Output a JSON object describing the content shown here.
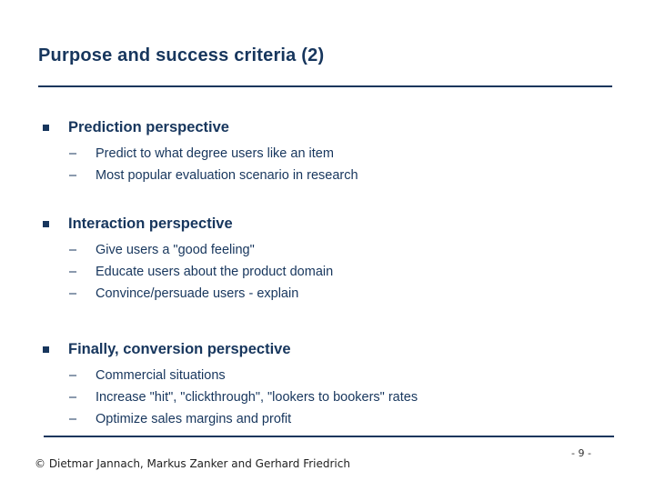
{
  "slide": {
    "title": "Purpose and success criteria (2)",
    "colors": {
      "accent": "#17365d",
      "footer_text": "#1f1f1f"
    },
    "bullet_glyphs": {
      "level2": "–"
    },
    "sections": [
      {
        "heading": "Prediction perspective",
        "items": [
          "Predict to what degree users like an item",
          "Most popular evaluation scenario in research"
        ]
      },
      {
        "heading": "Interaction perspective",
        "items": [
          "Give users a \"good feeling\"",
          "Educate users about the product domain",
          "Convince/persuade users - explain"
        ]
      },
      {
        "heading": "Finally, conversion perspective",
        "items": [
          "Commercial situations",
          "Increase \"hit\", \"clickthrough\", \"lookers to bookers\" rates",
          "Optimize sales margins and profit"
        ]
      }
    ],
    "footer": {
      "copyright": "© Dietmar Jannach, Markus Zanker and Gerhard Friedrich",
      "page_number": "- 9 -"
    }
  }
}
